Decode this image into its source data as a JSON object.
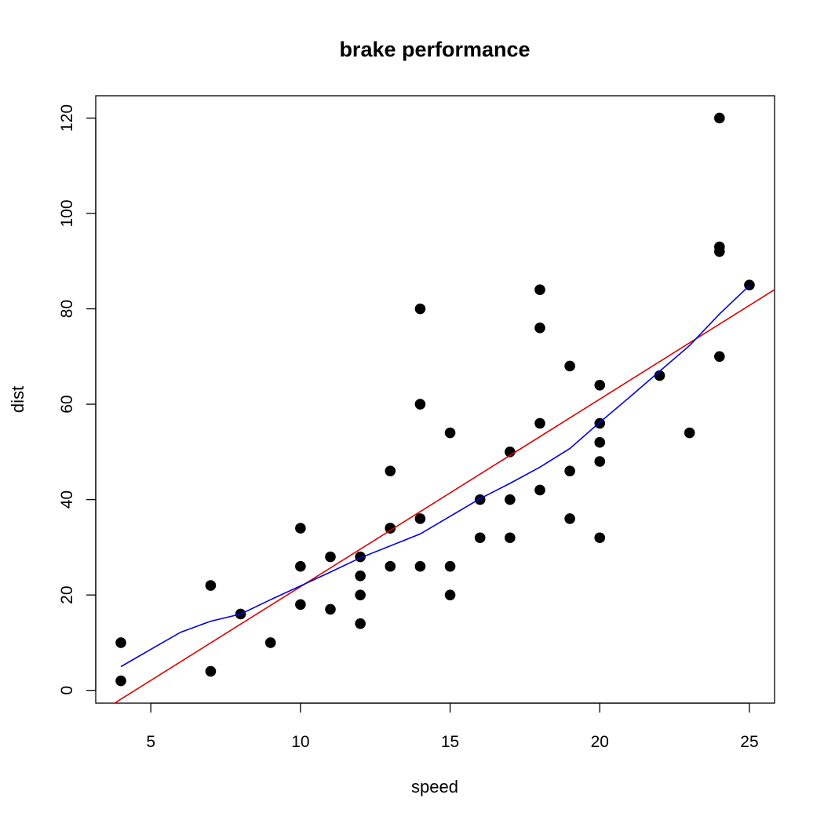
{
  "chart_data": {
    "type": "scatter",
    "title": "brake performance",
    "xlabel": "speed",
    "ylabel": "dist",
    "xlim": [
      3.16,
      25.84
    ],
    "ylim": [
      -2.68,
      124.68
    ],
    "xticks": [
      5,
      10,
      15,
      20,
      25
    ],
    "yticks": [
      0,
      20,
      40,
      60,
      80,
      100,
      120
    ],
    "grid": false,
    "points": {
      "x": [
        4,
        4,
        7,
        7,
        8,
        9,
        10,
        10,
        10,
        11,
        11,
        12,
        12,
        12,
        12,
        13,
        13,
        13,
        13,
        14,
        14,
        14,
        14,
        15,
        15,
        15,
        16,
        16,
        17,
        17,
        17,
        18,
        18,
        18,
        18,
        19,
        19,
        19,
        20,
        20,
        20,
        20,
        20,
        22,
        23,
        24,
        24,
        24,
        24,
        25
      ],
      "y": [
        2,
        10,
        4,
        22,
        16,
        10,
        18,
        26,
        34,
        17,
        28,
        14,
        20,
        24,
        28,
        26,
        34,
        34,
        46,
        26,
        36,
        60,
        80,
        20,
        26,
        54,
        32,
        40,
        32,
        40,
        50,
        42,
        56,
        76,
        84,
        36,
        46,
        68,
        32,
        48,
        52,
        56,
        64,
        66,
        54,
        70,
        92,
        93,
        120,
        85
      ],
      "color": "#000000"
    },
    "regression_line": {
      "intercept": -17.579,
      "slope": 3.932,
      "color": "#dd0000"
    },
    "smooth_line": {
      "x": [
        4,
        5,
        6,
        7,
        8,
        9,
        10,
        11,
        12,
        13,
        14,
        15,
        16,
        17,
        18,
        19,
        20,
        21,
        22,
        23,
        24,
        25
      ],
      "y": [
        4.97,
        8.6,
        12.2,
        14.5,
        16.0,
        19.0,
        21.9,
        24.8,
        27.8,
        30.3,
        32.8,
        36.5,
        40.2,
        43.4,
        46.8,
        50.7,
        56.2,
        61.5,
        66.9,
        72.3,
        78.9,
        84.9
      ],
      "color": "#0000dd"
    }
  }
}
